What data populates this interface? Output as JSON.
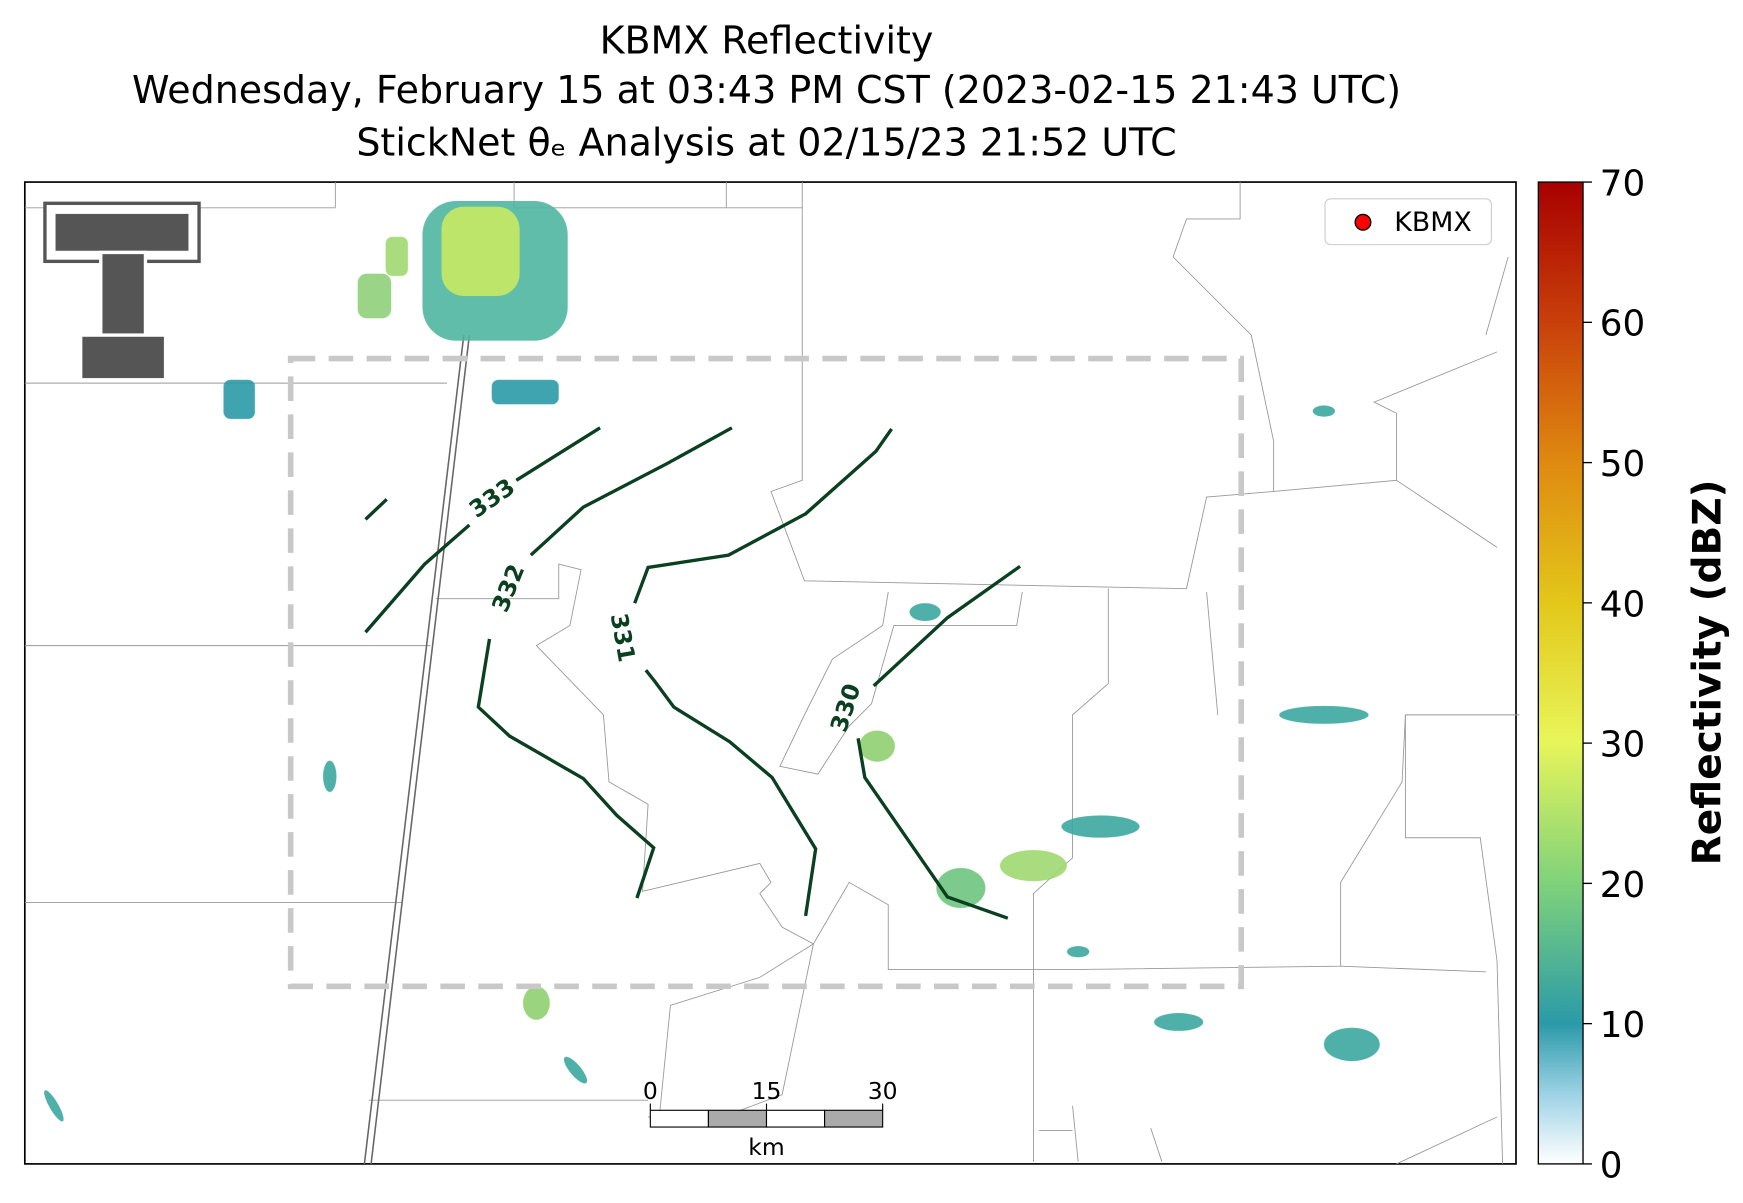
{
  "title": {
    "line1": "KBMX Reflectivity",
    "line2": "Wednesday, February 15 at 03:43 PM CST (2023-02-15 21:43 UTC)",
    "line3": "StickNet θₑ Analysis at 02/15/23 21:52 UTC"
  },
  "legend": {
    "label": "KBMX",
    "color": "#ff0000"
  },
  "contours": [
    {
      "level": 333
    },
    {
      "level": 332
    },
    {
      "level": 331
    },
    {
      "level": 330
    }
  ],
  "scale_bar": {
    "ticks": [
      0,
      15,
      30
    ],
    "unit": "km"
  },
  "colorbar": {
    "label": "Reflectivity (dBZ)",
    "lim": [
      0,
      70
    ],
    "ticks": [
      0,
      10,
      20,
      30,
      40,
      50,
      60,
      70
    ]
  }
}
